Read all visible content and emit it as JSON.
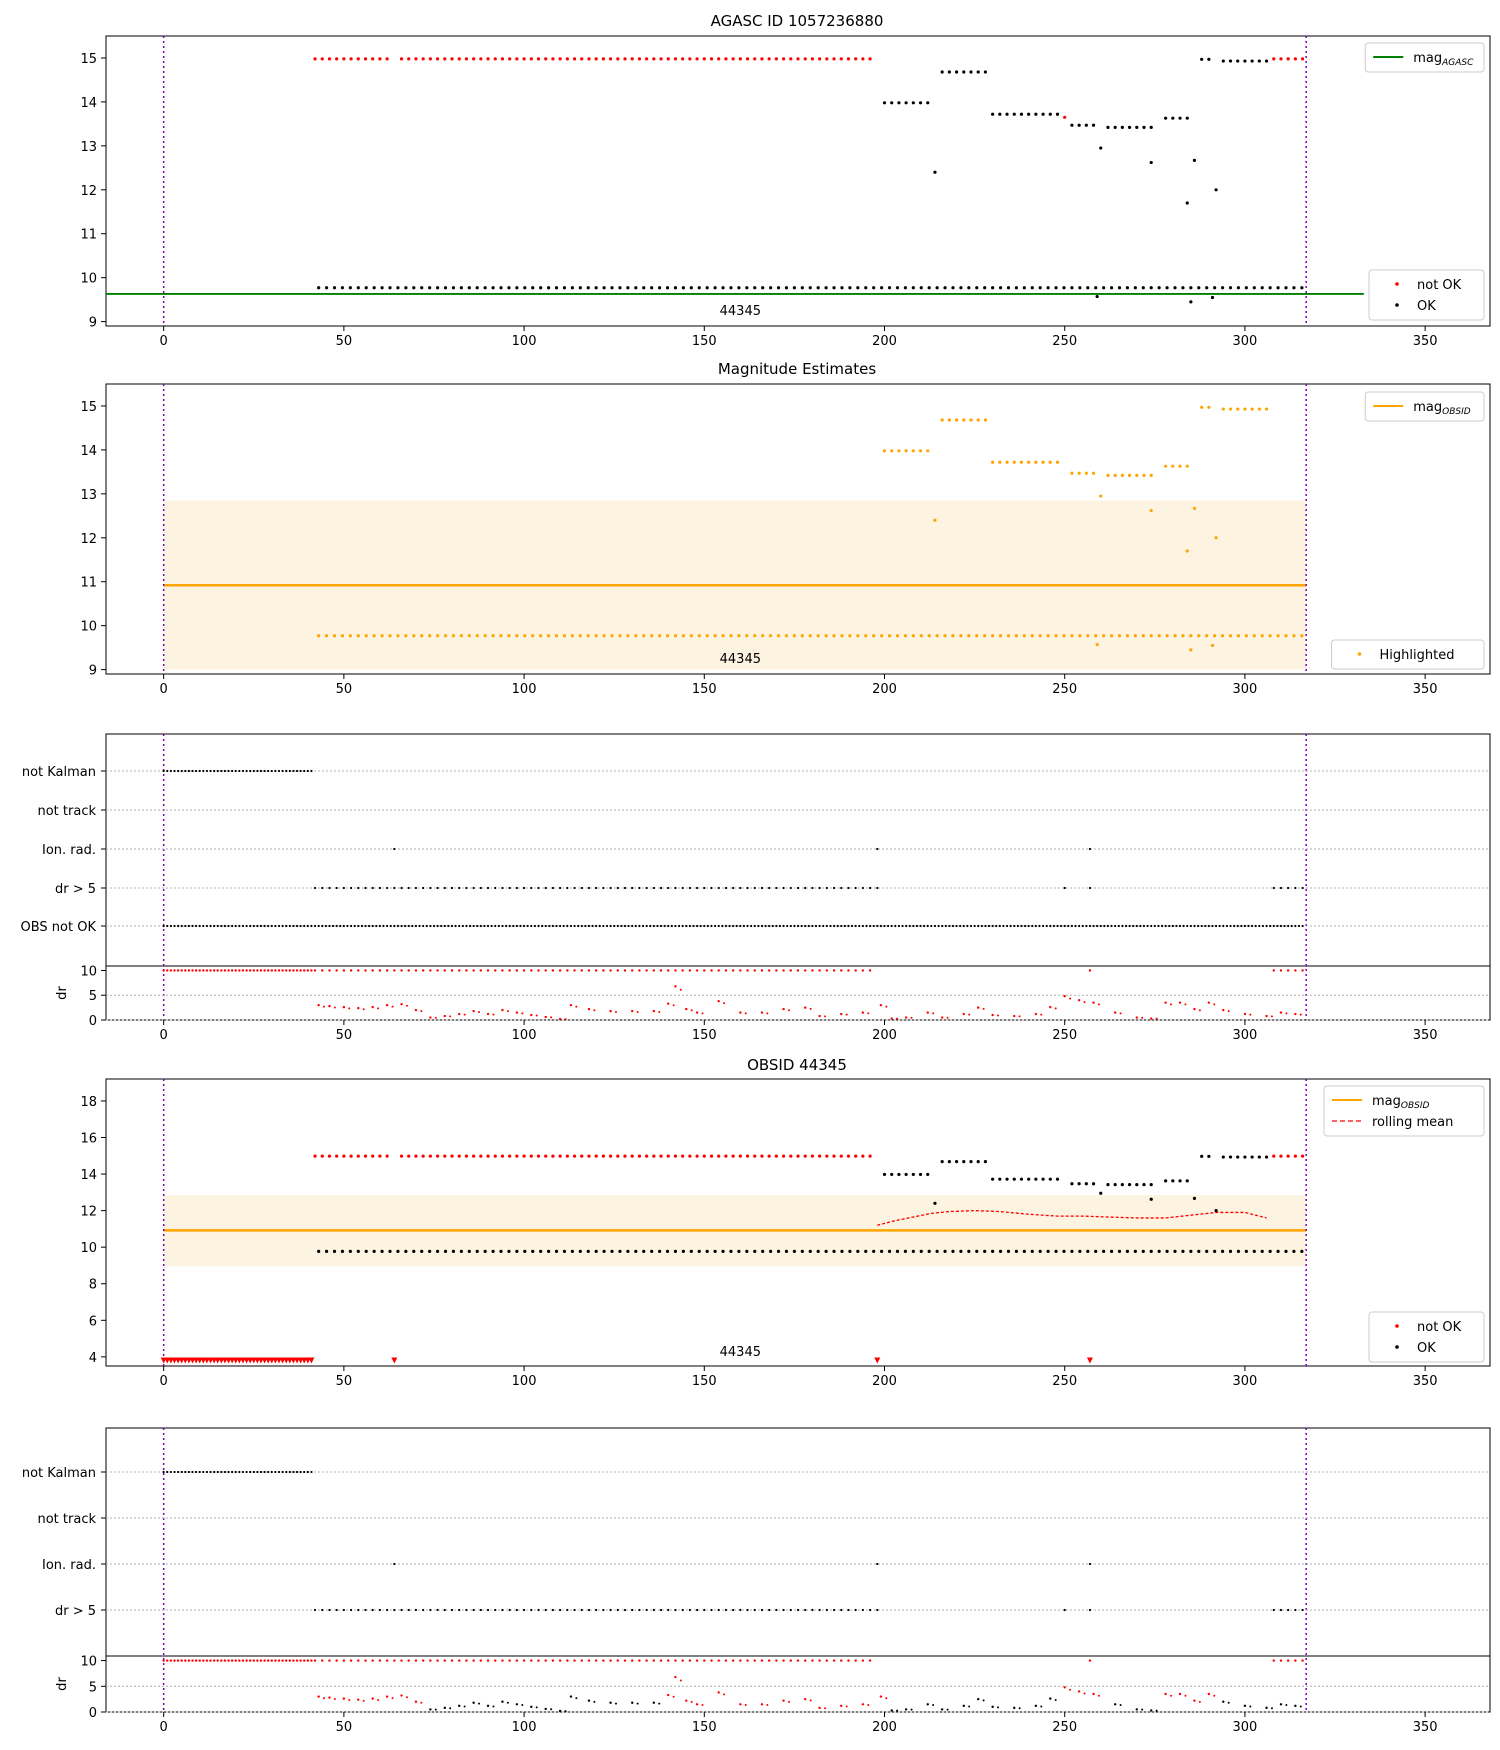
{
  "figure": {
    "x_ticks": [
      0,
      50,
      100,
      150,
      200,
      250,
      300,
      350
    ],
    "xlim": [
      -16,
      368
    ],
    "obs_start": 0,
    "obs_end": 317,
    "obsid_annotation": "44345",
    "colors": {
      "not_ok": "#ff0000",
      "ok": "#000000",
      "agasc_line": "#008000",
      "obsid_line": "#ffa500",
      "highlighted": "#ffa500",
      "band": "#fdf3e1",
      "obs_boundary": "#7b00b4",
      "grid": "#b0b0b0"
    }
  },
  "panels": {
    "p1": {
      "title": "AGASC ID 1057236880",
      "ylim": [
        8.9,
        15.5
      ],
      "yticks": [
        9,
        10,
        11,
        12,
        13,
        14,
        15
      ],
      "legend_top": [
        {
          "label": "mag",
          "subscript": "AGASC",
          "kind": "line",
          "color": "#008000"
        }
      ],
      "legend_bottom": [
        {
          "label": "not OK",
          "kind": "dot",
          "color": "#ff0000"
        },
        {
          "label": "OK",
          "kind": "dot",
          "color": "#000000"
        }
      ]
    },
    "p2": {
      "title": "Magnitude Estimates",
      "ylim": [
        8.9,
        15.5
      ],
      "yticks": [
        9,
        10,
        11,
        12,
        13,
        14,
        15
      ],
      "legend_top": [
        {
          "label": "mag",
          "subscript": "OBSID",
          "kind": "line",
          "color": "#ffa500"
        }
      ],
      "legend_bottom": [
        {
          "label": "Highlighted",
          "kind": "dot",
          "color": "#ffa500"
        }
      ]
    },
    "p3": {
      "flag_labels": [
        "not Kalman",
        "not track",
        "Ion. rad.",
        "dr > 5",
        "OBS not OK"
      ],
      "dr_label": "dr",
      "dr_yticks": [
        0,
        5,
        10
      ]
    },
    "p4": {
      "title": "OBSID 44345",
      "ylim": [
        3.5,
        19.2
      ],
      "yticks": [
        4,
        6,
        8,
        10,
        12,
        14,
        16,
        18
      ],
      "legend_top": [
        {
          "label": "mag",
          "subscript": "OBSID",
          "kind": "line",
          "color": "#ffa500"
        },
        {
          "label": "rolling mean",
          "kind": "dashed",
          "color": "#ff0000"
        }
      ],
      "legend_bottom": [
        {
          "label": "not OK",
          "kind": "dot",
          "color": "#ff0000"
        },
        {
          "label": "OK",
          "kind": "dot",
          "color": "#000000"
        }
      ]
    },
    "p5": {
      "flag_labels": [
        "not Kalman",
        "not track",
        "Ion. rad.",
        "dr > 5"
      ],
      "dr_label": "dr",
      "dr_yticks": [
        0,
        5,
        10
      ]
    }
  },
  "chart_data": [
    {
      "type": "scatter",
      "title": "AGASC ID 1057236880",
      "xlabel": "",
      "ylabel": "",
      "xlim": [
        -16,
        368
      ],
      "ylim": [
        8.9,
        15.5
      ],
      "mag_agasc": 9.63,
      "mag_agasc_xrange": [
        -16,
        333
      ],
      "series": [
        {
          "name": "not OK",
          "segments": [
            {
              "x_start": 42,
              "x_end": 62,
              "step": 2,
              "y": 14.98
            },
            {
              "x_start": 66,
              "x_end": 196,
              "step": 2,
              "y": 14.98
            },
            {
              "x_start": 308,
              "x_end": 316,
              "step": 2,
              "y": 14.98
            }
          ],
          "points": [
            [
              250,
              13.65
            ]
          ]
        },
        {
          "name": "OK",
          "segments": [
            {
              "x_start": 43,
              "x_end": 316,
              "step": 2.2,
              "y": 9.77
            },
            {
              "x_start": 200,
              "x_end": 212,
              "step": 2,
              "y": 13.98
            },
            {
              "x_start": 216,
              "x_end": 228,
              "step": 2,
              "y": 14.68
            },
            {
              "x_start": 230,
              "x_end": 248,
              "step": 2,
              "y": 13.72
            },
            {
              "x_start": 252,
              "x_end": 258,
              "step": 2,
              "y": 13.47
            },
            {
              "x_start": 262,
              "x_end": 274,
              "step": 2,
              "y": 13.42
            },
            {
              "x_start": 278,
              "x_end": 284,
              "step": 2,
              "y": 13.63
            },
            {
              "x_start": 288,
              "x_end": 290,
              "step": 2,
              "y": 14.97
            },
            {
              "x_start": 294,
              "x_end": 306,
              "step": 2,
              "y": 14.93
            }
          ],
          "points": [
            [
              214,
              12.4
            ],
            [
              260,
              12.95
            ],
            [
              274,
              12.62
            ],
            [
              284,
              11.7
            ],
            [
              286,
              12.67
            ],
            [
              292,
              12.0
            ],
            [
              259,
              9.57
            ],
            [
              285,
              9.45
            ],
            [
              291,
              9.55
            ]
          ]
        }
      ]
    },
    {
      "type": "scatter",
      "title": "Magnitude Estimates",
      "xlim": [
        -16,
        368
      ],
      "ylim": [
        8.9,
        15.5
      ],
      "mag_obsid": 10.92,
      "mag_obsid_band": [
        9.0,
        12.85
      ],
      "series": [
        {
          "name": "Highlighted",
          "segments": [
            {
              "x_start": 43,
              "x_end": 316,
              "step": 2.2,
              "y": 9.77
            },
            {
              "x_start": 200,
              "x_end": 212,
              "step": 2,
              "y": 13.98
            },
            {
              "x_start": 216,
              "x_end": 228,
              "step": 2,
              "y": 14.68
            },
            {
              "x_start": 230,
              "x_end": 248,
              "step": 2,
              "y": 13.72
            },
            {
              "x_start": 252,
              "x_end": 258,
              "step": 2,
              "y": 13.47
            },
            {
              "x_start": 262,
              "x_end": 274,
              "step": 2,
              "y": 13.42
            },
            {
              "x_start": 278,
              "x_end": 284,
              "step": 2,
              "y": 13.63
            },
            {
              "x_start": 288,
              "x_end": 290,
              "step": 2,
              "y": 14.97
            },
            {
              "x_start": 294,
              "x_end": 306,
              "step": 2,
              "y": 14.93
            }
          ],
          "points": [
            [
              214,
              12.4
            ],
            [
              260,
              12.95
            ],
            [
              274,
              12.62
            ],
            [
              284,
              11.7
            ],
            [
              286,
              12.67
            ],
            [
              292,
              12.0
            ],
            [
              259,
              9.57
            ],
            [
              285,
              9.45
            ],
            [
              291,
              9.55
            ]
          ]
        }
      ]
    },
    {
      "type": "scatter",
      "title": "",
      "flags": {
        "not Kalman": [
          {
            "x_start": 0,
            "x_end": 41,
            "step": 1
          }
        ],
        "not track": [],
        "Ion. rad.": [
          {
            "points": [
              64,
              198,
              257
            ]
          }
        ],
        "dr > 5": [
          {
            "x_start": 42,
            "x_end": 198,
            "step": 2
          },
          {
            "points": [
              250,
              257
            ]
          },
          {
            "x_start": 308,
            "x_end": 316,
            "step": 2
          }
        ],
        "OBS not OK": [
          {
            "x_start": 0,
            "x_end": 316,
            "step": 1
          }
        ]
      },
      "dr_ylim": [
        0,
        10.5
      ],
      "dr_not_ok_at_10": [
        {
          "x_start": 0,
          "x_end": 42,
          "step": 1
        },
        {
          "x_start": 44,
          "x_end": 196,
          "step": 2
        },
        {
          "x_start": 308,
          "x_end": 316,
          "step": 2
        },
        {
          "points": [
            257
          ]
        }
      ],
      "dr_values": [
        [
          43,
          3.0
        ],
        [
          46,
          2.8
        ],
        [
          50,
          2.6
        ],
        [
          54,
          2.4
        ],
        [
          58,
          2.6
        ],
        [
          62,
          3.0
        ],
        [
          66,
          3.2
        ],
        [
          70,
          2.0
        ],
        [
          74,
          0.5
        ],
        [
          78,
          0.8
        ],
        [
          82,
          1.2
        ],
        [
          86,
          1.8
        ],
        [
          90,
          1.2
        ],
        [
          94,
          2.0
        ],
        [
          98,
          1.5
        ],
        [
          102,
          1.0
        ],
        [
          106,
          0.6
        ],
        [
          110,
          0.2
        ],
        [
          113,
          3.0
        ],
        [
          118,
          2.2
        ],
        [
          124,
          1.8
        ],
        [
          130,
          1.8
        ],
        [
          136,
          1.8
        ],
        [
          140,
          3.3
        ],
        [
          142,
          6.8
        ],
        [
          145,
          2.2
        ],
        [
          148,
          1.5
        ],
        [
          154,
          3.8
        ],
        [
          160,
          1.5
        ],
        [
          166,
          1.5
        ],
        [
          172,
          2.2
        ],
        [
          178,
          2.5
        ],
        [
          182,
          0.8
        ],
        [
          188,
          1.2
        ],
        [
          194,
          1.5
        ],
        [
          199,
          3.0
        ],
        [
          202,
          0.3
        ],
        [
          206,
          0.5
        ],
        [
          212,
          1.5
        ],
        [
          216,
          0.5
        ],
        [
          222,
          1.2
        ],
        [
          226,
          2.5
        ],
        [
          230,
          1.0
        ],
        [
          236,
          0.8
        ],
        [
          242,
          1.2
        ],
        [
          246,
          2.6
        ],
        [
          250,
          4.8
        ],
        [
          254,
          4.0
        ],
        [
          258,
          3.5
        ],
        [
          264,
          1.5
        ],
        [
          270,
          0.5
        ],
        [
          274,
          0.3
        ],
        [
          278,
          3.5
        ],
        [
          282,
          3.5
        ],
        [
          286,
          2.2
        ],
        [
          290,
          3.5
        ],
        [
          294,
          2.0
        ],
        [
          300,
          1.2
        ],
        [
          306,
          0.8
        ],
        [
          310,
          1.5
        ],
        [
          314,
          1.2
        ]
      ]
    },
    {
      "type": "scatter",
      "title": "OBSID 44345",
      "xlim": [
        -16,
        368
      ],
      "ylim": [
        3.5,
        19.2
      ],
      "mag_obsid": 10.92,
      "mag_obsid_band": [
        8.95,
        12.85
      ],
      "rolling_mean": [
        [
          198,
          11.2
        ],
        [
          203,
          11.45
        ],
        [
          208,
          11.65
        ],
        [
          213,
          11.85
        ],
        [
          218,
          11.95
        ],
        [
          225,
          12.0
        ],
        [
          232,
          11.95
        ],
        [
          240,
          11.8
        ],
        [
          248,
          11.7
        ],
        [
          255,
          11.7
        ],
        [
          262,
          11.65
        ],
        [
          270,
          11.6
        ],
        [
          278,
          11.6
        ],
        [
          285,
          11.75
        ],
        [
          292,
          11.9
        ],
        [
          300,
          11.9
        ],
        [
          306,
          11.6
        ]
      ],
      "series": [
        {
          "name": "not OK",
          "segments": [
            {
              "x_start": 42,
              "x_end": 62,
              "step": 2,
              "y": 14.98
            },
            {
              "x_start": 66,
              "x_end": 196,
              "step": 2,
              "y": 14.98
            },
            {
              "x_start": 308,
              "x_end": 316,
              "step": 2,
              "y": 14.98
            }
          ],
          "triangles_at_y": 3.8,
          "triangles": [
            {
              "x_start": 0,
              "x_end": 41,
              "step": 1
            },
            {
              "points": [
                64,
                198,
                257
              ]
            }
          ]
        },
        {
          "name": "OK",
          "segments": [
            {
              "x_start": 43,
              "x_end": 316,
              "step": 2.2,
              "y": 9.77
            },
            {
              "x_start": 200,
              "x_end": 212,
              "step": 2,
              "y": 13.98
            },
            {
              "x_start": 216,
              "x_end": 228,
              "step": 2,
              "y": 14.68
            },
            {
              "x_start": 230,
              "x_end": 248,
              "step": 2,
              "y": 13.72
            },
            {
              "x_start": 252,
              "x_end": 258,
              "step": 2,
              "y": 13.47
            },
            {
              "x_start": 262,
              "x_end": 274,
              "step": 2,
              "y": 13.42
            },
            {
              "x_start": 278,
              "x_end": 284,
              "step": 2,
              "y": 13.63
            },
            {
              "x_start": 288,
              "x_end": 290,
              "step": 2,
              "y": 14.97
            },
            {
              "x_start": 294,
              "x_end": 306,
              "step": 2,
              "y": 14.93
            }
          ],
          "points": [
            [
              214,
              12.4
            ],
            [
              260,
              12.95
            ],
            [
              274,
              12.62
            ],
            [
              286,
              12.67
            ],
            [
              292,
              12.0
            ]
          ]
        }
      ]
    },
    {
      "type": "scatter",
      "title": "",
      "flags": {
        "not Kalman": [
          {
            "x_start": 0,
            "x_end": 41,
            "step": 1
          }
        ],
        "not track": [],
        "Ion. rad.": [
          {
            "points": [
              64,
              198,
              257
            ]
          }
        ],
        "dr > 5": [
          {
            "x_start": 42,
            "x_end": 198,
            "step": 2
          },
          {
            "points": [
              250,
              257
            ]
          },
          {
            "x_start": 308,
            "x_end": 316,
            "step": 2
          }
        ]
      },
      "dr_ylim": [
        0,
        10.5
      ],
      "dr_note": "same dr values as panel 3; red for not OK frames, black for OK frames"
    }
  ]
}
